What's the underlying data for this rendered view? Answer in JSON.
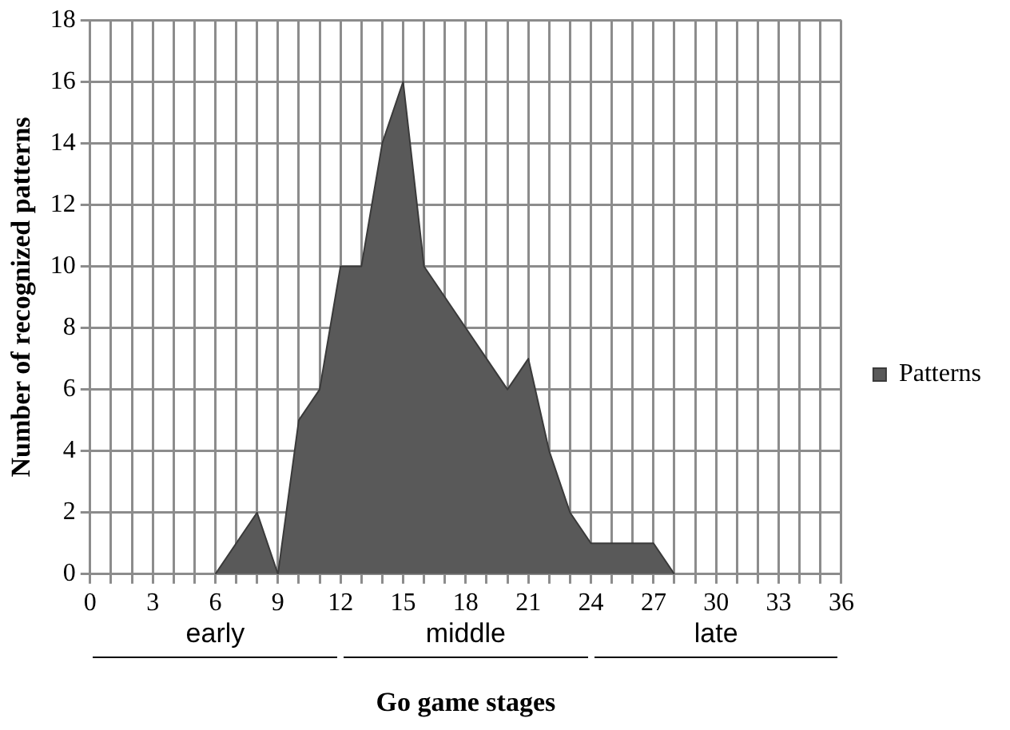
{
  "chart_data": {
    "type": "area",
    "xlabel": "Go game stages",
    "ylabel": "Number of recognized patterns",
    "x": [
      6,
      7,
      8,
      9,
      10,
      11,
      12,
      13,
      14,
      15,
      16,
      17,
      18,
      19,
      20,
      21,
      22,
      23,
      24,
      25,
      26,
      27,
      28
    ],
    "series": [
      {
        "name": "Patterns",
        "color": "#595959",
        "values": [
          0,
          1,
          2,
          0,
          5,
          6,
          10,
          10,
          14,
          16,
          10,
          9,
          8,
          7,
          6,
          7,
          4,
          2,
          1,
          1,
          1,
          1,
          0
        ]
      }
    ],
    "xlim": [
      0,
      36
    ],
    "xticks": [
      0,
      {
        "value": 1,
        "label": null
      },
      {
        "value": 2,
        "label": null
      },
      3,
      {
        "value": 4,
        "label": null
      },
      {
        "value": 5,
        "label": null
      },
      6,
      {
        "value": 7,
        "label": null
      },
      {
        "value": 8,
        "label": null
      },
      9,
      {
        "value": 10,
        "label": null
      },
      {
        "value": 11,
        "label": null
      },
      12,
      {
        "value": 13,
        "label": null
      },
      {
        "value": 14,
        "label": null
      },
      15,
      {
        "value": 16,
        "label": null
      },
      {
        "value": 17,
        "label": null
      },
      18,
      {
        "value": 19,
        "label": null
      },
      {
        "value": 20,
        "label": null
      },
      21,
      {
        "value": 22,
        "label": null
      },
      {
        "value": 23,
        "label": null
      },
      24,
      {
        "value": 25,
        "label": null
      },
      {
        "value": 26,
        "label": null
      },
      27,
      {
        "value": 28,
        "label": null
      },
      {
        "value": 29,
        "label": null
      },
      30,
      {
        "value": 31,
        "label": null
      },
      {
        "value": 32,
        "label": null
      },
      33,
      {
        "value": 34,
        "label": null
      },
      {
        "value": 35,
        "label": null
      },
      36
    ],
    "ylim": [
      0,
      18
    ],
    "yticks": [
      0,
      2,
      4,
      6,
      8,
      10,
      12,
      14,
      16,
      18
    ],
    "grid": true,
    "legend": "right",
    "annotations": [
      "early",
      "middle",
      "late"
    ]
  }
}
